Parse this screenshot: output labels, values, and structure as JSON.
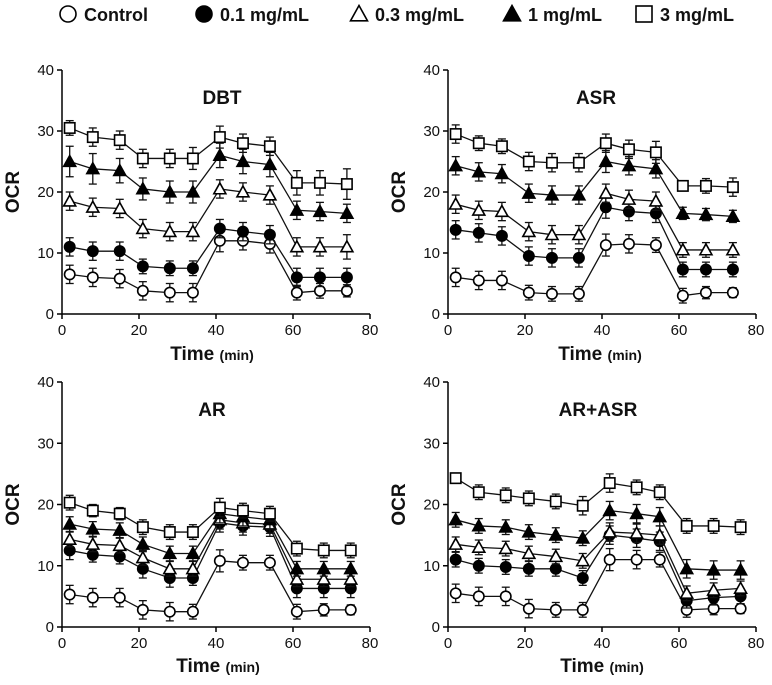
{
  "legend": [
    {
      "label": "Control",
      "marker": "open-circle"
    },
    {
      "label": "0.1 mg/mL",
      "marker": "filled-circle"
    },
    {
      "label": "0.3 mg/mL",
      "marker": "open-triangle"
    },
    {
      "label": "1 mg/mL",
      "marker": "filled-triangle"
    },
    {
      "label": "3 mg/mL",
      "marker": "open-square"
    }
  ],
  "chart_data": [
    {
      "type": "line",
      "title": "DBT",
      "ylabel": "OCR",
      "xlabel": "Time",
      "xunit": "(min)",
      "xlim": [
        0,
        80
      ],
      "ylim": [
        0,
        40
      ],
      "xticks": [
        0,
        20,
        40,
        60,
        80
      ],
      "yticks": [
        0,
        10,
        20,
        30,
        40
      ],
      "x": [
        2,
        8,
        15,
        21,
        28,
        34,
        41,
        47,
        54,
        61,
        67,
        74
      ],
      "series": [
        {
          "name": "Control",
          "values": [
            6.5,
            6,
            5.8,
            3.8,
            3.5,
            3.5,
            12,
            12,
            11.5,
            3.5,
            3.8,
            3.8
          ],
          "err": [
            1.5,
            1.5,
            1.5,
            1.5,
            1.5,
            1.5,
            1.8,
            1.5,
            1.5,
            1.2,
            1.2,
            1.0
          ]
        },
        {
          "name": "0.1 mg/mL",
          "values": [
            11,
            10.3,
            10.3,
            7.8,
            7.5,
            7.5,
            14,
            13.5,
            13,
            6,
            6,
            6
          ],
          "err": [
            1.5,
            1.5,
            1.5,
            1.2,
            1.2,
            1.2,
            1.5,
            1.5,
            1.5,
            1.5,
            1.5,
            1.5
          ]
        },
        {
          "name": "0.3 mg/mL",
          "values": [
            18.5,
            17.5,
            17.3,
            14,
            13.5,
            13.5,
            20.5,
            20,
            19.5,
            11,
            11,
            11
          ],
          "err": [
            1.5,
            1.5,
            1.5,
            1.5,
            1.5,
            1.5,
            1.5,
            1.5,
            1.5,
            1.5,
            1.5,
            2.0
          ]
        },
        {
          "name": "1 mg/mL",
          "values": [
            25,
            23.8,
            23.5,
            20.5,
            20,
            20,
            26,
            25,
            24.5,
            17,
            16.8,
            16.5
          ],
          "err": [
            2.5,
            2.5,
            2.0,
            1.8,
            1.8,
            1.8,
            2.0,
            2.0,
            2.0,
            1.5,
            1.5,
            1.5
          ]
        },
        {
          "name": "3 mg/mL",
          "values": [
            30.5,
            29,
            28.5,
            25.5,
            25.5,
            25.5,
            29,
            28,
            27.5,
            21.5,
            21.5,
            21.3
          ],
          "err": [
            1.2,
            1.5,
            1.5,
            1.5,
            1.5,
            1.8,
            1.8,
            1.5,
            1.5,
            2.0,
            2.0,
            2.5
          ]
        }
      ]
    },
    {
      "type": "line",
      "title": "ASR",
      "ylabel": "OCR",
      "xlabel": "Time",
      "xunit": "(min)",
      "xlim": [
        0,
        80
      ],
      "ylim": [
        0,
        40
      ],
      "xticks": [
        0,
        20,
        40,
        60,
        80
      ],
      "yticks": [
        0,
        10,
        20,
        30,
        40
      ],
      "x": [
        2,
        8,
        14,
        21,
        27,
        34,
        41,
        47,
        54,
        61,
        67,
        74
      ],
      "series": [
        {
          "name": "Control",
          "values": [
            6,
            5.5,
            5.5,
            3.5,
            3.3,
            3.3,
            11.3,
            11.5,
            11.3,
            3,
            3.5,
            3.5
          ],
          "err": [
            1.5,
            1.5,
            1.5,
            1.2,
            1.2,
            1.2,
            1.8,
            1.5,
            1.2,
            1.2,
            1.0,
            0.8
          ]
        },
        {
          "name": "0.1 mg/mL",
          "values": [
            13.8,
            13.3,
            12.8,
            9.5,
            9.2,
            9.2,
            17.5,
            16.8,
            16.5,
            7.3,
            7.3,
            7.3
          ],
          "err": [
            1.5,
            1.5,
            1.5,
            1.5,
            1.5,
            1.5,
            1.8,
            1.5,
            1.5,
            1.2,
            1.2,
            1.2
          ]
        },
        {
          "name": "0.3 mg/mL",
          "values": [
            18,
            17,
            16.8,
            13.5,
            13,
            13,
            19.8,
            18.8,
            18.5,
            10.5,
            10.5,
            10.5
          ],
          "err": [
            1.5,
            1.5,
            1.5,
            1.5,
            1.5,
            1.5,
            1.5,
            1.5,
            1.5,
            1.2,
            1.2,
            1.2
          ]
        },
        {
          "name": "1 mg/mL",
          "values": [
            24.3,
            23.3,
            23,
            19.8,
            19.5,
            19.5,
            25,
            24.3,
            23.8,
            16.5,
            16.3,
            16
          ],
          "err": [
            1.5,
            1.5,
            1.5,
            1.5,
            1.5,
            1.5,
            1.8,
            1.5,
            1.5,
            1.0,
            1.0,
            1.0
          ]
        },
        {
          "name": "3 mg/mL",
          "values": [
            29.5,
            28,
            27.5,
            25,
            24.8,
            24.8,
            28,
            27,
            26.5,
            21,
            21,
            20.8
          ],
          "err": [
            1.5,
            1.2,
            1.2,
            1.5,
            1.5,
            1.5,
            1.5,
            1.5,
            1.8,
            0.8,
            1.2,
            1.5
          ]
        }
      ]
    },
    {
      "type": "line",
      "title": "AR",
      "ylabel": "OCR",
      "xlabel": "Time",
      "xunit": "(min)",
      "xlim": [
        0,
        80
      ],
      "ylim": [
        0,
        40
      ],
      "xticks": [
        0,
        20,
        40,
        60,
        80
      ],
      "yticks": [
        0,
        10,
        20,
        30,
        40
      ],
      "x": [
        2,
        8,
        15,
        21,
        28,
        34,
        41,
        47,
        54,
        61,
        68,
        75
      ],
      "series": [
        {
          "name": "Control",
          "values": [
            5.3,
            4.8,
            4.8,
            2.8,
            2.5,
            2.5,
            10.8,
            10.5,
            10.5,
            2.5,
            2.8,
            2.8
          ],
          "err": [
            1.5,
            1.5,
            1.5,
            1.5,
            1.5,
            1.2,
            1.8,
            1.2,
            1.2,
            1.2,
            1.0,
            0.8
          ]
        },
        {
          "name": "0.1 mg/mL",
          "values": [
            12.5,
            11.8,
            11.5,
            9.5,
            8,
            8,
            17,
            16.5,
            16.3,
            6.3,
            6.3,
            6.3
          ],
          "err": [
            1.5,
            1.2,
            1.2,
            1.5,
            1.5,
            1.2,
            1.5,
            1.5,
            1.5,
            1.5,
            1.5,
            1.5
          ]
        },
        {
          "name": "0.3 mg/mL",
          "values": [
            14.3,
            13.5,
            13.3,
            11.3,
            9.5,
            9.5,
            17.5,
            17,
            16.8,
            7.8,
            7.8,
            7.8
          ],
          "err": [
            1.2,
            1.2,
            1.2,
            1.2,
            1.2,
            1.2,
            1.5,
            1.5,
            1.5,
            1.2,
            1.2,
            1.2
          ]
        },
        {
          "name": "1 mg/mL",
          "values": [
            16.8,
            16,
            15.8,
            13.5,
            12,
            12,
            18.5,
            18,
            17.5,
            9.5,
            9.5,
            9.5
          ],
          "err": [
            1.2,
            1.2,
            1.2,
            1.2,
            1.2,
            1.2,
            1.5,
            1.5,
            1.5,
            1.2,
            1.2,
            1.2
          ]
        },
        {
          "name": "3 mg/mL",
          "values": [
            20.3,
            19,
            18.5,
            16.3,
            15.5,
            15.5,
            19.5,
            19,
            18.5,
            12.8,
            12.5,
            12.5
          ],
          "err": [
            1.2,
            1.0,
            1.0,
            1.2,
            1.2,
            1.2,
            1.5,
            1.2,
            1.2,
            1.2,
            1.2,
            1.2
          ]
        }
      ]
    },
    {
      "type": "line",
      "title": "AR+ASR",
      "ylabel": "OCR",
      "xlabel": "Time",
      "xunit": "(min)",
      "xlim": [
        0,
        80
      ],
      "ylim": [
        0,
        40
      ],
      "xticks": [
        0,
        20,
        40,
        60,
        80
      ],
      "yticks": [
        0,
        10,
        20,
        30,
        40
      ],
      "x": [
        2,
        8,
        15,
        21,
        28,
        35,
        42,
        49,
        55,
        62,
        69,
        76
      ],
      "series": [
        {
          "name": "Control",
          "values": [
            5.5,
            5,
            5,
            3,
            2.8,
            2.8,
            11,
            11,
            11,
            2.8,
            3,
            3
          ],
          "err": [
            1.5,
            1.5,
            1.5,
            1.5,
            1.2,
            1.2,
            1.8,
            1.5,
            1.2,
            1.2,
            1.0,
            0.8
          ]
        },
        {
          "name": "0.1 mg/mL",
          "values": [
            11,
            10,
            9.8,
            9.5,
            9.5,
            8,
            15,
            14.5,
            14,
            4.3,
            4.8,
            5
          ],
          "err": [
            1.2,
            1.2,
            1.2,
            1.2,
            1.2,
            1.2,
            1.5,
            1.5,
            1.5,
            1.2,
            1.2,
            1.2
          ]
        },
        {
          "name": "0.3 mg/mL",
          "values": [
            13.5,
            13,
            12.8,
            12,
            11.5,
            10.8,
            15.5,
            15.3,
            15,
            5.5,
            6,
            6.3
          ],
          "err": [
            1.2,
            1.2,
            1.2,
            1.2,
            1.2,
            1.2,
            1.5,
            1.5,
            1.5,
            1.2,
            1.2,
            1.2
          ]
        },
        {
          "name": "1 mg/mL",
          "values": [
            17.5,
            16.5,
            16.3,
            15.5,
            15,
            14.5,
            19,
            18.5,
            18,
            9.5,
            9.3,
            9.3
          ],
          "err": [
            1.2,
            1.2,
            1.2,
            1.2,
            1.2,
            1.2,
            1.5,
            1.5,
            1.5,
            1.5,
            1.5,
            1.5
          ]
        },
        {
          "name": "3 mg/mL",
          "values": [
            24.3,
            22,
            21.5,
            21,
            20.5,
            19.8,
            23.5,
            22.8,
            22,
            16.5,
            16.5,
            16.3
          ],
          "err": [
            0.8,
            1.2,
            1.2,
            1.2,
            1.2,
            1.5,
            1.5,
            1.2,
            1.2,
            1.2,
            1.2,
            1.2
          ]
        }
      ]
    }
  ]
}
